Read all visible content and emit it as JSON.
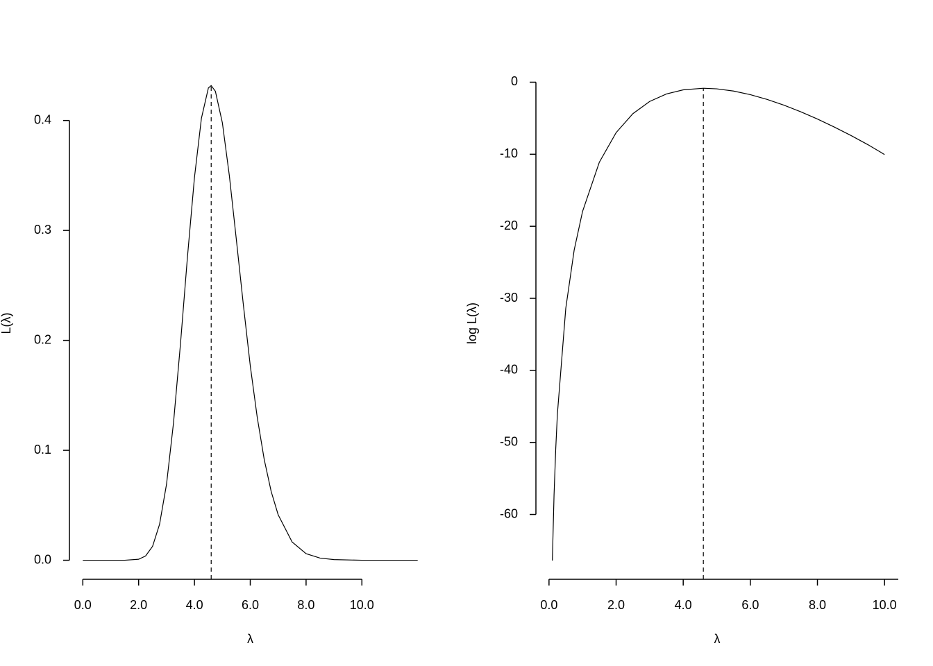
{
  "chart_data": [
    {
      "type": "line",
      "x_label": "λ",
      "y_label": "L(λ)",
      "x": [
        0,
        0.25,
        0.5,
        0.75,
        1,
        1.5,
        2,
        2.25,
        2.5,
        2.75,
        3,
        3.25,
        3.5,
        3.75,
        4,
        4.25,
        4.5,
        4.6,
        4.75,
        5,
        5.25,
        5.5,
        5.75,
        6,
        6.25,
        6.5,
        6.75,
        7,
        7.5,
        8,
        8.5,
        9,
        10,
        11,
        12
      ],
      "series": [
        {
          "color": "#000000",
          "values": [
            0,
            0,
            0,
            0,
            0,
            2e-05,
            0.0009,
            0.0039,
            0.0127,
            0.0327,
            0.0692,
            0.125,
            0.197,
            0.276,
            0.348,
            0.402,
            0.4296,
            0.4317,
            0.4266,
            0.398,
            0.35,
            0.292,
            0.233,
            0.177,
            0.13,
            0.0917,
            0.0625,
            0.0414,
            0.0166,
            0.006,
            0.002,
            0.0006,
            0,
            0,
            0
          ]
        }
      ],
      "reference_x": 4.6,
      "xlim": [
        -0.48,
        12.48
      ],
      "ylim": [
        -0.0173,
        0.449
      ],
      "xticks": [
        {
          "value": 0,
          "label": "0.0"
        },
        {
          "value": 2,
          "label": "2.0"
        },
        {
          "value": 4,
          "label": "4.0"
        },
        {
          "value": 6,
          "label": "6.0"
        },
        {
          "value": 8,
          "label": "8.0"
        },
        {
          "value": 10,
          "label": "10.0"
        }
      ],
      "yticks": [
        {
          "value": 0,
          "label": "0.0"
        },
        0.1,
        0.2,
        0.3,
        0.4
      ]
    },
    {
      "type": "line",
      "x_label": "λ",
      "y_label": "log L(λ)",
      "x": [
        0.1,
        0.15,
        0.2,
        0.25,
        0.5,
        0.75,
        1,
        1.5,
        2,
        2.5,
        3,
        3.5,
        4,
        4.6,
        5,
        5.5,
        6,
        6.5,
        7,
        7.5,
        8,
        8.5,
        9,
        9.5,
        10
      ],
      "series": [
        {
          "color": "#000000",
          "values": [
            -66.4,
            -57.32,
            -50.96,
            -46.07,
            -31.38,
            -23.31,
            -17.94,
            -11.11,
            -7.0,
            -4.37,
            -2.67,
            -1.63,
            -1.06,
            -0.84,
            -0.92,
            -1.23,
            -1.73,
            -2.39,
            -3.19,
            -4.1,
            -5.11,
            -6.22,
            -7.4,
            -8.66,
            -10.04
          ]
        }
      ],
      "reference_x": 4.6,
      "xlim": [
        -0.39,
        10.41
      ],
      "ylim": [
        -69.0,
        1.78
      ],
      "xticks": [
        {
          "value": 0,
          "label": "0.0"
        },
        {
          "value": 2,
          "label": "2.0"
        },
        {
          "value": 4,
          "label": "4.0"
        },
        {
          "value": 6,
          "label": "6.0"
        },
        {
          "value": 8,
          "label": "8.0"
        },
        {
          "value": 10,
          "label": "10.0"
        }
      ],
      "yticks": [
        0,
        -10,
        -20,
        -30,
        -40,
        -50,
        -60
      ]
    }
  ]
}
